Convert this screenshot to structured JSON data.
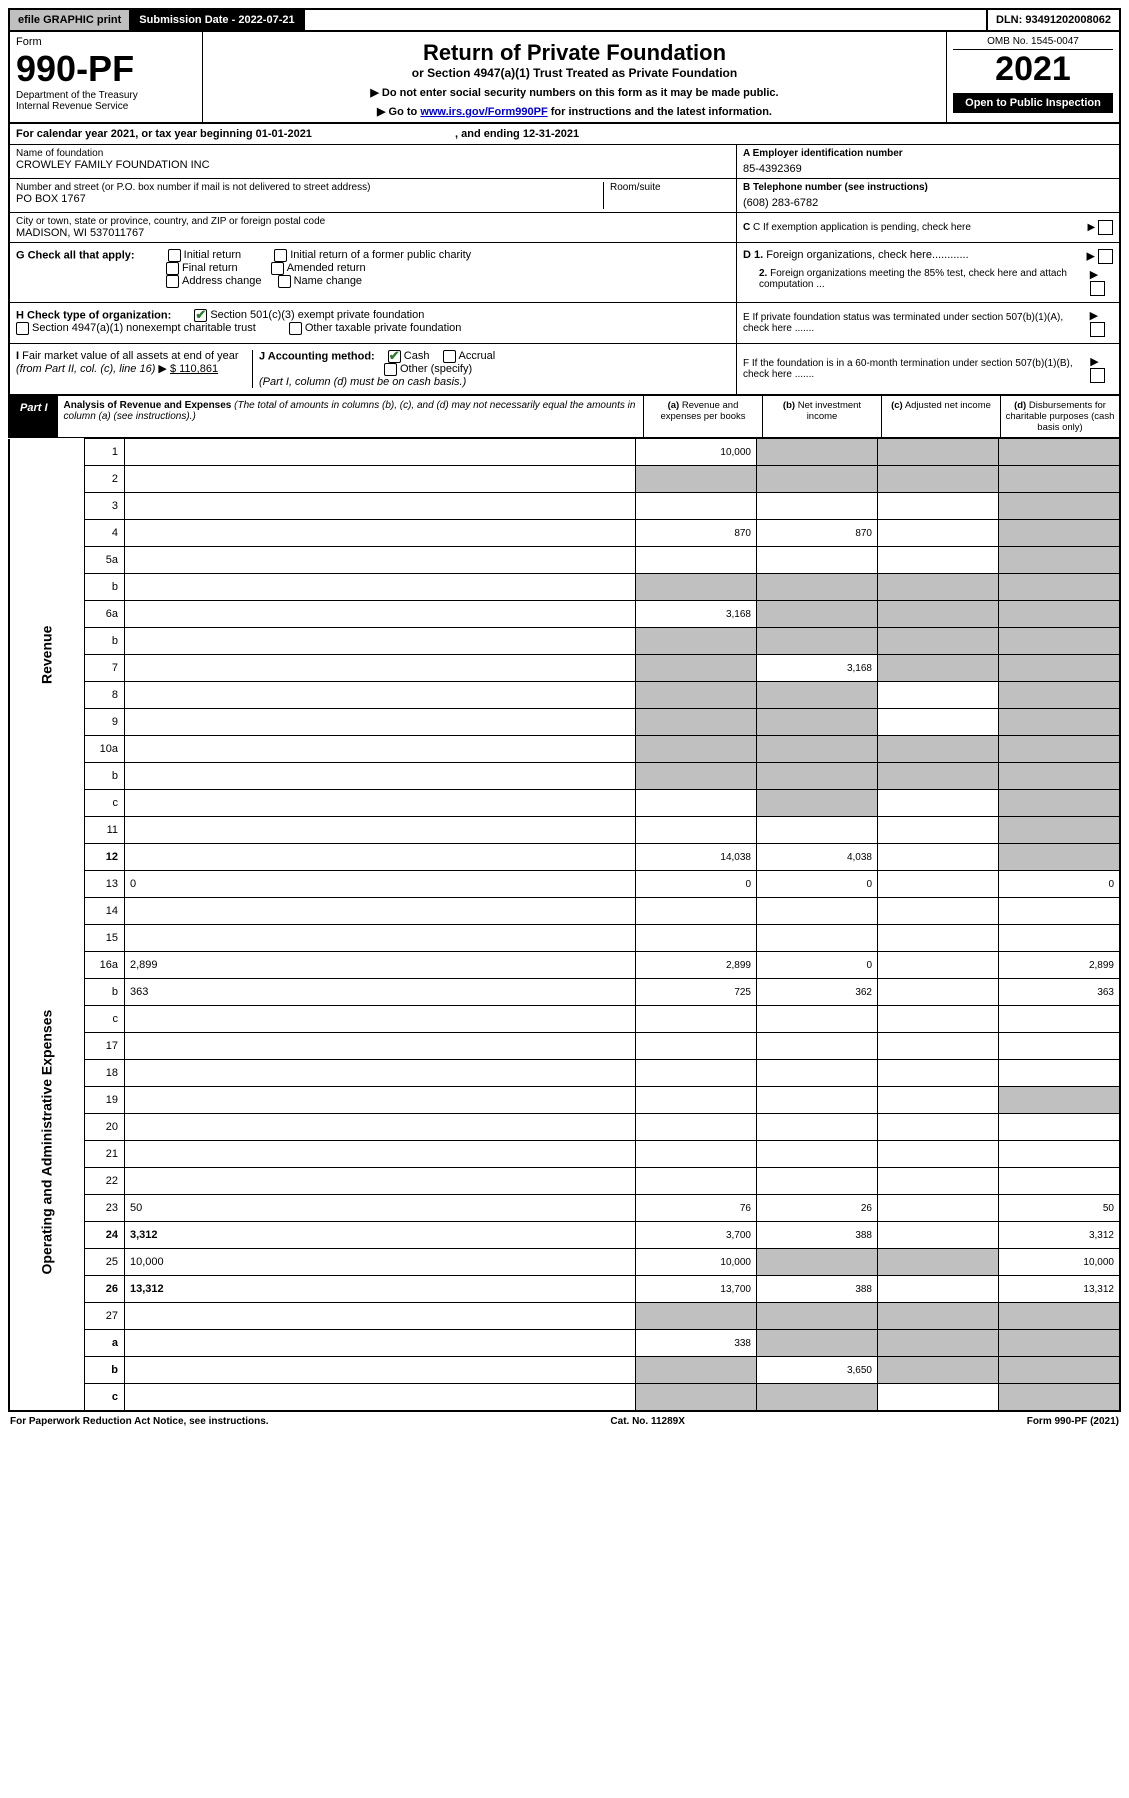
{
  "topbar": {
    "efile": "efile GRAPHIC print",
    "subdate_label": "Submission Date - ",
    "subdate": "2022-07-21",
    "dln_label": "DLN: ",
    "dln": "93491202008062"
  },
  "header": {
    "form_label": "Form",
    "form_no": "990-PF",
    "dept": "Department of the Treasury",
    "irs": "Internal Revenue Service",
    "title": "Return of Private Foundation",
    "subtitle": "or Section 4947(a)(1) Trust Treated as Private Foundation",
    "instr1": "Do not enter social security numbers on this form as it may be made public.",
    "instr2_pre": "Go to ",
    "instr2_link": "www.irs.gov/Form990PF",
    "instr2_post": " for instructions and the latest information.",
    "omb": "OMB No. 1545-0047",
    "year": "2021",
    "open": "Open to Public Inspection"
  },
  "cal": {
    "pre": "For calendar year 2021, or tax year beginning ",
    "begin": "01-01-2021",
    "mid": " , and ending ",
    "end": "12-31-2021"
  },
  "info": {
    "name_lbl": "Name of foundation",
    "name": "CROWLEY FAMILY FOUNDATION INC",
    "addr_lbl": "Number and street (or P.O. box number if mail is not delivered to street address)",
    "addr": "PO BOX 1767",
    "room_lbl": "Room/suite",
    "city_lbl": "City or town, state or province, country, and ZIP or foreign postal code",
    "city": "MADISON, WI  537011767",
    "a_lbl": "A Employer identification number",
    "a_val": "85-4392369",
    "b_lbl": "B Telephone number (see instructions)",
    "b_val": "(608) 283-6782",
    "c_lbl": "C If exemption application is pending, check here"
  },
  "G": {
    "lbl": "G Check all that apply:",
    "o1": "Initial return",
    "o2": "Final return",
    "o3": "Address change",
    "o4": "Initial return of a former public charity",
    "o5": "Amended return",
    "o6": "Name change"
  },
  "D": {
    "l1": "D 1. Foreign organizations, check here............",
    "l2": "2. Foreign organizations meeting the 85% test, check here and attach computation ..."
  },
  "H": {
    "lbl": "H Check type of organization:",
    "o1": "Section 501(c)(3) exempt private foundation",
    "o2": "Section 4947(a)(1) nonexempt charitable trust",
    "o3": "Other taxable private foundation"
  },
  "E": "E  If private foundation status was terminated under section 507(b)(1)(A), check here .......",
  "I": {
    "lbl": "I Fair market value of all assets at end of year (from Part II, col. (c), line 16) ▶",
    "val": "$  110,861"
  },
  "J": {
    "lbl": "J Accounting method:",
    "o1": "Cash",
    "o2": "Accrual",
    "o3": "Other (specify)",
    "note": "(Part I, column (d) must be on cash basis.)"
  },
  "F": "F  If the foundation is in a 60-month termination under section 507(b)(1)(B), check here .......",
  "part1": {
    "label": "Part I",
    "title": "Analysis of Revenue and Expenses",
    "desc": " (The total of amounts in columns (b), (c), and (d) may not necessarily equal the amounts in column (a) (see instructions).)",
    "col_a": "(a) Revenue and expenses per books",
    "col_b": "(b) Net investment income",
    "col_c": "(c) Adjusted net income",
    "col_d": "(d) Disbursements for charitable purposes (cash basis only)"
  },
  "sides": {
    "rev": "Revenue",
    "exp": "Operating and Administrative Expenses"
  },
  "rows": [
    {
      "n": "1",
      "d": "",
      "a": "10,000",
      "b": "",
      "c": "",
      "sb": true,
      "sc": true,
      "sd": true
    },
    {
      "n": "2",
      "d": "",
      "a": "",
      "b": "",
      "c": "",
      "sa": true,
      "sb": true,
      "sc": true,
      "sd": true
    },
    {
      "n": "3",
      "d": "",
      "a": "",
      "b": "",
      "c": "",
      "sd": true
    },
    {
      "n": "4",
      "d": "",
      "a": "870",
      "b": "870",
      "c": "",
      "sd": true
    },
    {
      "n": "5a",
      "d": "",
      "a": "",
      "b": "",
      "c": "",
      "sd": true
    },
    {
      "n": "b",
      "d": "",
      "a": "",
      "b": "",
      "c": "",
      "sa": true,
      "sb": true,
      "sc": true,
      "sd": true
    },
    {
      "n": "6a",
      "d": "",
      "a": "3,168",
      "b": "",
      "c": "",
      "sb": true,
      "sc": true,
      "sd": true
    },
    {
      "n": "b",
      "d": "",
      "a": "",
      "b": "",
      "c": "",
      "sa": true,
      "sb": true,
      "sc": true,
      "sd": true
    },
    {
      "n": "7",
      "d": "",
      "a": "",
      "b": "3,168",
      "c": "",
      "sa": true,
      "sc": true,
      "sd": true
    },
    {
      "n": "8",
      "d": "",
      "a": "",
      "b": "",
      "c": "",
      "sa": true,
      "sb": true,
      "sd": true
    },
    {
      "n": "9",
      "d": "",
      "a": "",
      "b": "",
      "c": "",
      "sa": true,
      "sb": true,
      "sd": true
    },
    {
      "n": "10a",
      "d": "",
      "a": "",
      "b": "",
      "c": "",
      "sa": true,
      "sb": true,
      "sc": true,
      "sd": true
    },
    {
      "n": "b",
      "d": "",
      "a": "",
      "b": "",
      "c": "",
      "sa": true,
      "sb": true,
      "sc": true,
      "sd": true
    },
    {
      "n": "c",
      "d": "",
      "a": "",
      "b": "",
      "c": "",
      "sb": true,
      "sd": true
    },
    {
      "n": "11",
      "d": "",
      "a": "",
      "b": "",
      "c": "",
      "sd": true
    },
    {
      "n": "12",
      "d": "",
      "a": "14,038",
      "b": "4,038",
      "c": "",
      "sd": true,
      "bold": true
    },
    {
      "n": "13",
      "d": "0",
      "a": "0",
      "b": "0",
      "c": ""
    },
    {
      "n": "14",
      "d": "",
      "a": "",
      "b": "",
      "c": ""
    },
    {
      "n": "15",
      "d": "",
      "a": "",
      "b": "",
      "c": ""
    },
    {
      "n": "16a",
      "d": "2,899",
      "a": "2,899",
      "b": "0",
      "c": ""
    },
    {
      "n": "b",
      "d": "363",
      "a": "725",
      "b": "362",
      "c": ""
    },
    {
      "n": "c",
      "d": "",
      "a": "",
      "b": "",
      "c": ""
    },
    {
      "n": "17",
      "d": "",
      "a": "",
      "b": "",
      "c": ""
    },
    {
      "n": "18",
      "d": "",
      "a": "",
      "b": "",
      "c": ""
    },
    {
      "n": "19",
      "d": "",
      "a": "",
      "b": "",
      "c": "",
      "sd": true
    },
    {
      "n": "20",
      "d": "",
      "a": "",
      "b": "",
      "c": ""
    },
    {
      "n": "21",
      "d": "",
      "a": "",
      "b": "",
      "c": ""
    },
    {
      "n": "22",
      "d": "",
      "a": "",
      "b": "",
      "c": ""
    },
    {
      "n": "23",
      "d": "50",
      "a": "76",
      "b": "26",
      "c": ""
    },
    {
      "n": "24",
      "d": "3,312",
      "a": "3,700",
      "b": "388",
      "c": "",
      "bold": true
    },
    {
      "n": "25",
      "d": "10,000",
      "a": "10,000",
      "b": "",
      "c": "",
      "sb": true,
      "sc": true
    },
    {
      "n": "26",
      "d": "13,312",
      "a": "13,700",
      "b": "388",
      "c": "",
      "bold": true
    },
    {
      "n": "27",
      "d": "",
      "a": "",
      "b": "",
      "c": "",
      "sa": true,
      "sb": true,
      "sc": true,
      "sd": true
    },
    {
      "n": "a",
      "d": "",
      "a": "338",
      "b": "",
      "c": "",
      "sb": true,
      "sc": true,
      "sd": true,
      "bold": true
    },
    {
      "n": "b",
      "d": "",
      "a": "",
      "b": "3,650",
      "c": "",
      "sa": true,
      "sc": true,
      "sd": true,
      "bold": true
    },
    {
      "n": "c",
      "d": "",
      "a": "",
      "b": "",
      "c": "",
      "sa": true,
      "sb": true,
      "sd": true,
      "bold": true
    }
  ],
  "footer": {
    "left": "For Paperwork Reduction Act Notice, see instructions.",
    "center": "Cat. No. 11289X",
    "right": "Form 990-PF (2021)"
  }
}
